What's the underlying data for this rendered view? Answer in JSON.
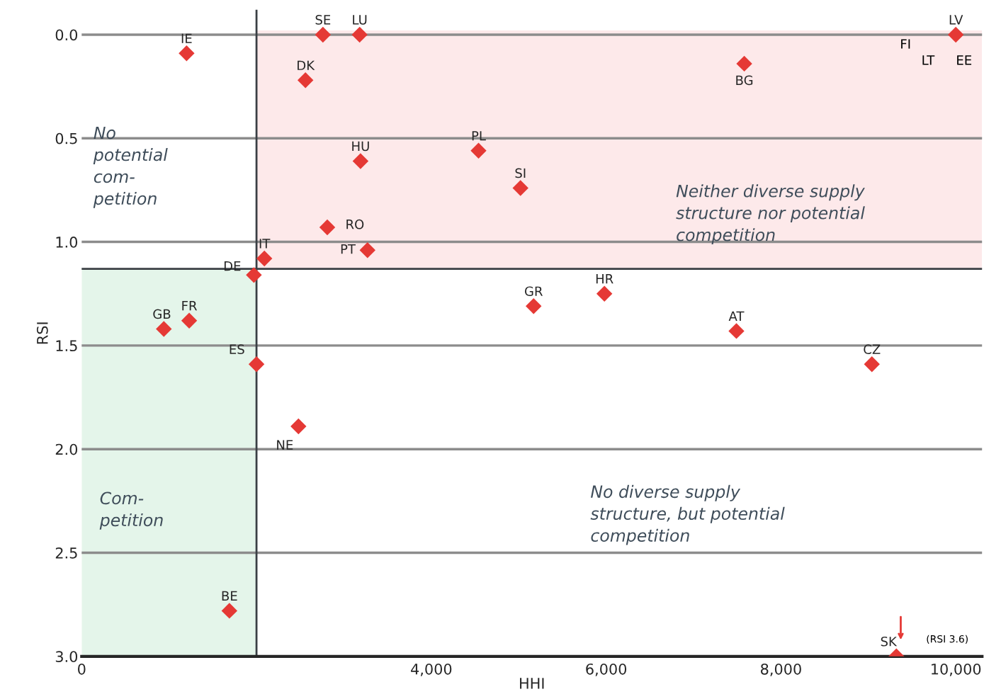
{
  "chart_data": {
    "type": "scatter",
    "xlabel": "HHI",
    "ylabel": "RSI",
    "x": [
      1200,
      2760,
      3180,
      10000,
      2560,
      7580,
      3190,
      4540,
      5020,
      2810,
      3270,
      2090,
      1970,
      5170,
      5980,
      7490,
      9040,
      940,
      1230,
      2000,
      2480,
      1690,
      9320
    ],
    "series": [
      {
        "color": "#e53935",
        "values": [
          0.09,
          0.0,
          0.0,
          0.0,
          0.22,
          0.14,
          0.61,
          0.56,
          0.74,
          0.93,
          1.04,
          1.08,
          1.16,
          1.31,
          1.25,
          1.43,
          1.59,
          1.42,
          1.38,
          1.59,
          1.89,
          2.78,
          3.0
        ]
      }
    ],
    "marker": "diamond",
    "xlim": [
      0,
      10300
    ],
    "ylim": [
      3.0,
      -0.12
    ],
    "xticks": [
      0,
      {
        "value": 4000,
        "label": "4,000"
      },
      {
        "value": 6000,
        "label": "6,000"
      },
      {
        "value": 8000,
        "label": "8,000"
      },
      {
        "value": 10000,
        "label": "10,000"
      }
    ],
    "yticks": [
      {
        "value": 0,
        "label": "0.0"
      },
      0.5,
      {
        "value": 1,
        "label": "1.0"
      },
      1.5,
      {
        "value": 2,
        "label": "2.0"
      },
      2.5,
      {
        "value": 3,
        "label": "3.0"
      }
    ],
    "grid": "y",
    "ref_lines": [
      {
        "axis": "x",
        "value": 2000,
        "color": "#3a3f44"
      },
      {
        "axis": "y",
        "value": 1.13,
        "color": "#3a3f44"
      }
    ],
    "bands": [
      {
        "axis": "y",
        "from": -0.02,
        "to": 1.13,
        "color": "#fde9ea"
      },
      {
        "axis": "x",
        "from": 0,
        "to": 2000,
        "color": "#e4f5ea"
      }
    ],
    "annotations": [
      {
        "text": "IE",
        "x": 1200,
        "y": 0.09
      },
      {
        "text": "SE",
        "x": 2760,
        "y": 0.0
      },
      {
        "text": "LU",
        "x": 3180,
        "y": 0.0
      },
      {
        "text": "LV",
        "x": 10000,
        "y": 0.0
      },
      {
        "text": "DK",
        "x": 2560,
        "y": 0.22
      },
      {
        "text": "BG",
        "x": 7580,
        "y": 0.14
      },
      {
        "text": "HU",
        "x": 3190,
        "y": 0.61
      },
      {
        "text": "PL",
        "x": 4540,
        "y": 0.56
      },
      {
        "text": "SI",
        "x": 5020,
        "y": 0.74
      },
      {
        "text": "RO",
        "x": 2810,
        "y": 0.93
      },
      {
        "text": "PT",
        "x": 3270,
        "y": 1.04
      },
      {
        "text": "IT",
        "x": 2090,
        "y": 1.08
      },
      {
        "text": "DE",
        "x": 1970,
        "y": 1.16
      },
      {
        "text": "GR",
        "x": 5170,
        "y": 1.31
      },
      {
        "text": "HR",
        "x": 5980,
        "y": 1.25
      },
      {
        "text": "AT",
        "x": 7490,
        "y": 1.43
      },
      {
        "text": "CZ",
        "x": 9040,
        "y": 1.59
      },
      {
        "text": "GB",
        "x": 940,
        "y": 1.42
      },
      {
        "text": "FR",
        "x": 1230,
        "y": 1.38
      },
      {
        "text": "ES",
        "x": 2000,
        "y": 1.59
      },
      {
        "text": "NE",
        "x": 2480,
        "y": 1.89
      },
      {
        "text": "BE",
        "x": 1690,
        "y": 2.78
      },
      {
        "text": "SK",
        "x": 9320,
        "y": 3.0
      },
      "FI",
      "LT",
      "EE",
      "(RSI 3.6)",
      "No\npotential\ncom-\npetition",
      "Neither diverse supply\nstructure nor potential\ncompetition",
      "Com-\npetition",
      "No diverse supply\nstructure, but potential\ncompetition"
    ]
  }
}
